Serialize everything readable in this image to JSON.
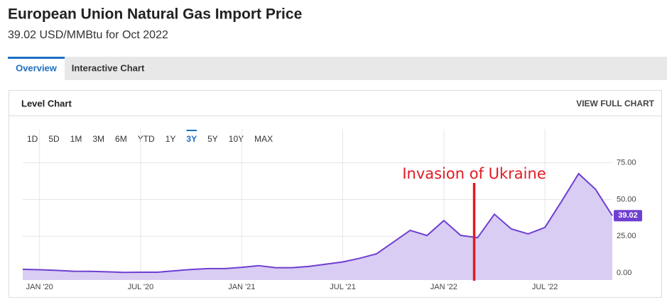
{
  "header": {
    "title": "European Union Natural Gas Import Price",
    "subtitle": "39.02 USD/MMBtu for Oct 2022"
  },
  "tabs": [
    "Overview",
    "Interactive Chart"
  ],
  "panel": {
    "title": "Level Chart",
    "action": "VIEW FULL CHART"
  },
  "ranges": [
    "1D",
    "5D",
    "1M",
    "3M",
    "6M",
    "YTD",
    "1Y",
    "3Y",
    "5Y",
    "10Y",
    "MAX"
  ],
  "chart_data": {
    "type": "area",
    "color": "#6f3fd1",
    "fill": "#d9cdf3",
    "annotation": "Invasion of Ukraine",
    "annotation_color": "#e01b24",
    "values": [
      2.5,
      2.2,
      1.8,
      1.2,
      1.1,
      0.8,
      0.4,
      0.5,
      0.5,
      1.5,
      2.4,
      3.0,
      3.0,
      3.8,
      5.0,
      3.6,
      3.6,
      4.5,
      6,
      7.5,
      10,
      13,
      21,
      29,
      25.5,
      35.7,
      25.6,
      24,
      40,
      30,
      26.6,
      31,
      49,
      67.6,
      57,
      39.02
    ],
    "xlim": [
      0,
      35
    ],
    "xticks": [
      {
        "value": 1,
        "label": "JAN '20"
      },
      {
        "value": 7,
        "label": "JUL '20"
      },
      {
        "value": 13,
        "label": "JAN '21"
      },
      {
        "value": 19,
        "label": "JUL '21"
      },
      {
        "value": 25,
        "label": "JAN '22"
      },
      {
        "value": 31,
        "label": "JUL '22"
      }
    ],
    "ylim": [
      -4.8,
      98
    ],
    "yticks": [
      {
        "value": 0,
        "label": "0.00"
      },
      {
        "value": 25,
        "label": "25.00"
      },
      {
        "value": 50,
        "label": "50.00"
      },
      {
        "value": 75,
        "label": "75.00"
      }
    ],
    "grid": true
  }
}
